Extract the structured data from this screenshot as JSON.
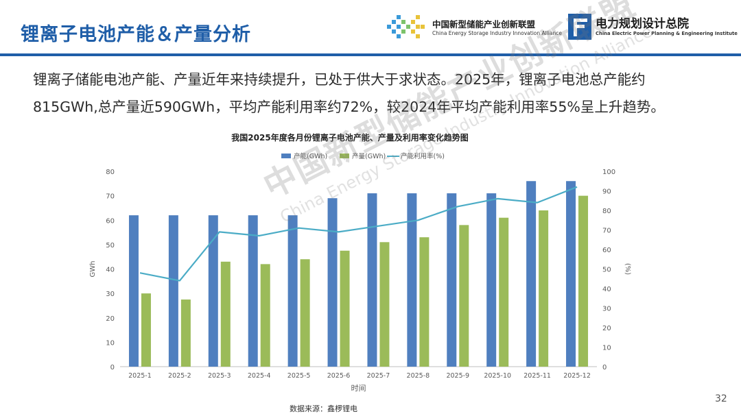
{
  "header": {
    "title": "锂离子电池产能＆产量分析",
    "logo_alliance_cn": "中国新型储能产业创新联盟",
    "logo_alliance_en": "China Energy Storage Industry Innovation Alliance",
    "logo_institute_cn": "电力规划设计总院",
    "logo_institute_en": "China Electric Power Planning & Engineering Institute"
  },
  "summary": {
    "line1": "锂离子储能电池产能、产量近年来持续提升，已处于供大于求状态。2025年，锂离子电池总产能约",
    "line2": "815GWh,总产量近590GWh，平均产能利用率约72%，较2024年平均产能利用率55%呈上升趋势。"
  },
  "watermark": {
    "cn": "中国新型储能产业创新联盟",
    "en": "China Energy Storage Industry Innovation Alliance"
  },
  "colors": {
    "capacity": "#4f7fbf",
    "output": "#9bbb59",
    "rate": "#4bacc6",
    "brand": "#1f5ea8"
  },
  "chart_data": {
    "type": "bar",
    "title": "我国2025年度各月份锂离子电池产能、产量及利用率变化趋势图",
    "xlabel": "时间",
    "ylabel": "GWh",
    "y2label": "(%)",
    "ylim": [
      0,
      80
    ],
    "y2lim": [
      0,
      100
    ],
    "yticks": [
      0,
      10,
      20,
      30,
      40,
      50,
      60,
      70,
      80
    ],
    "y2ticks": [
      0,
      10,
      20,
      30,
      40,
      50,
      60,
      70,
      80,
      90,
      100
    ],
    "grid": false,
    "legend_position": "top",
    "categories": [
      "2025-1",
      "2025-2",
      "2025-3",
      "2025-4",
      "2025-5",
      "2025-6",
      "2025-7",
      "2025-8",
      "2025-9",
      "2025-10",
      "2025-11",
      "2025-12"
    ],
    "series": [
      {
        "name": "产能(GWh)",
        "type": "bar",
        "axis": "left",
        "values": [
          62,
          62,
          62,
          62,
          62,
          69,
          71,
          71,
          71,
          71,
          76,
          76
        ]
      },
      {
        "name": "产量(GWh)",
        "type": "bar",
        "axis": "left",
        "values": [
          30,
          27.5,
          43,
          42,
          44,
          47.5,
          51,
          53,
          58,
          61,
          64,
          70
        ]
      },
      {
        "name": "产能利用率(%)",
        "type": "line",
        "axis": "right",
        "values": [
          48,
          44,
          69,
          67,
          71,
          69,
          72,
          75,
          82,
          86,
          84,
          92
        ]
      }
    ]
  },
  "footer": {
    "source": "数据来源：鑫椤锂电",
    "page_number": "32"
  }
}
